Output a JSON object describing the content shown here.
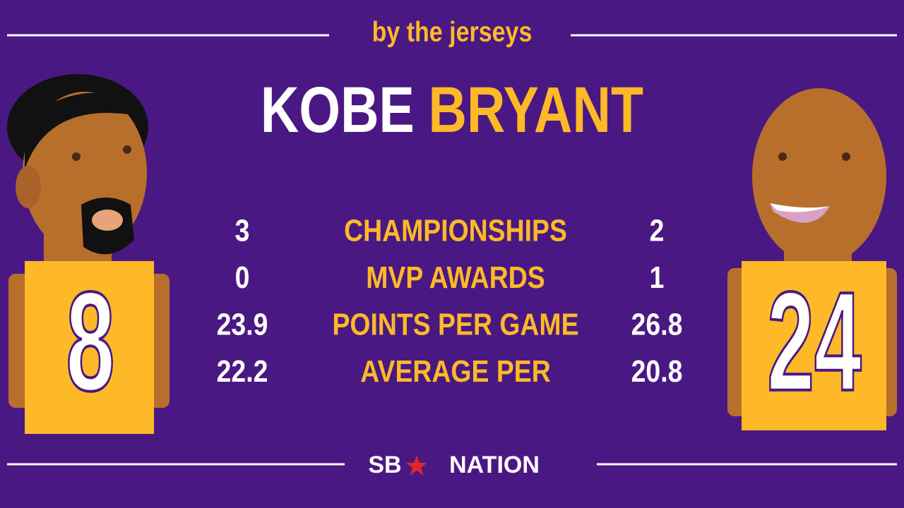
{
  "header": {
    "subtitle": "by the jerseys",
    "title_first": "KOBE",
    "title_last": "BRYANT"
  },
  "jerseys": {
    "left": "8",
    "right": "24"
  },
  "stats": {
    "rows": [
      [
        "3",
        "CHAMPIONSHIPS",
        "2"
      ],
      [
        "0",
        "MVP AWARDS",
        "1"
      ],
      [
        "23.9",
        "POINTS PER GAME",
        "26.8"
      ],
      [
        "22.2",
        "AVERAGE PER",
        "20.8"
      ]
    ]
  },
  "footer": {
    "logo_left": "SB",
    "logo_right": "NATION"
  }
}
